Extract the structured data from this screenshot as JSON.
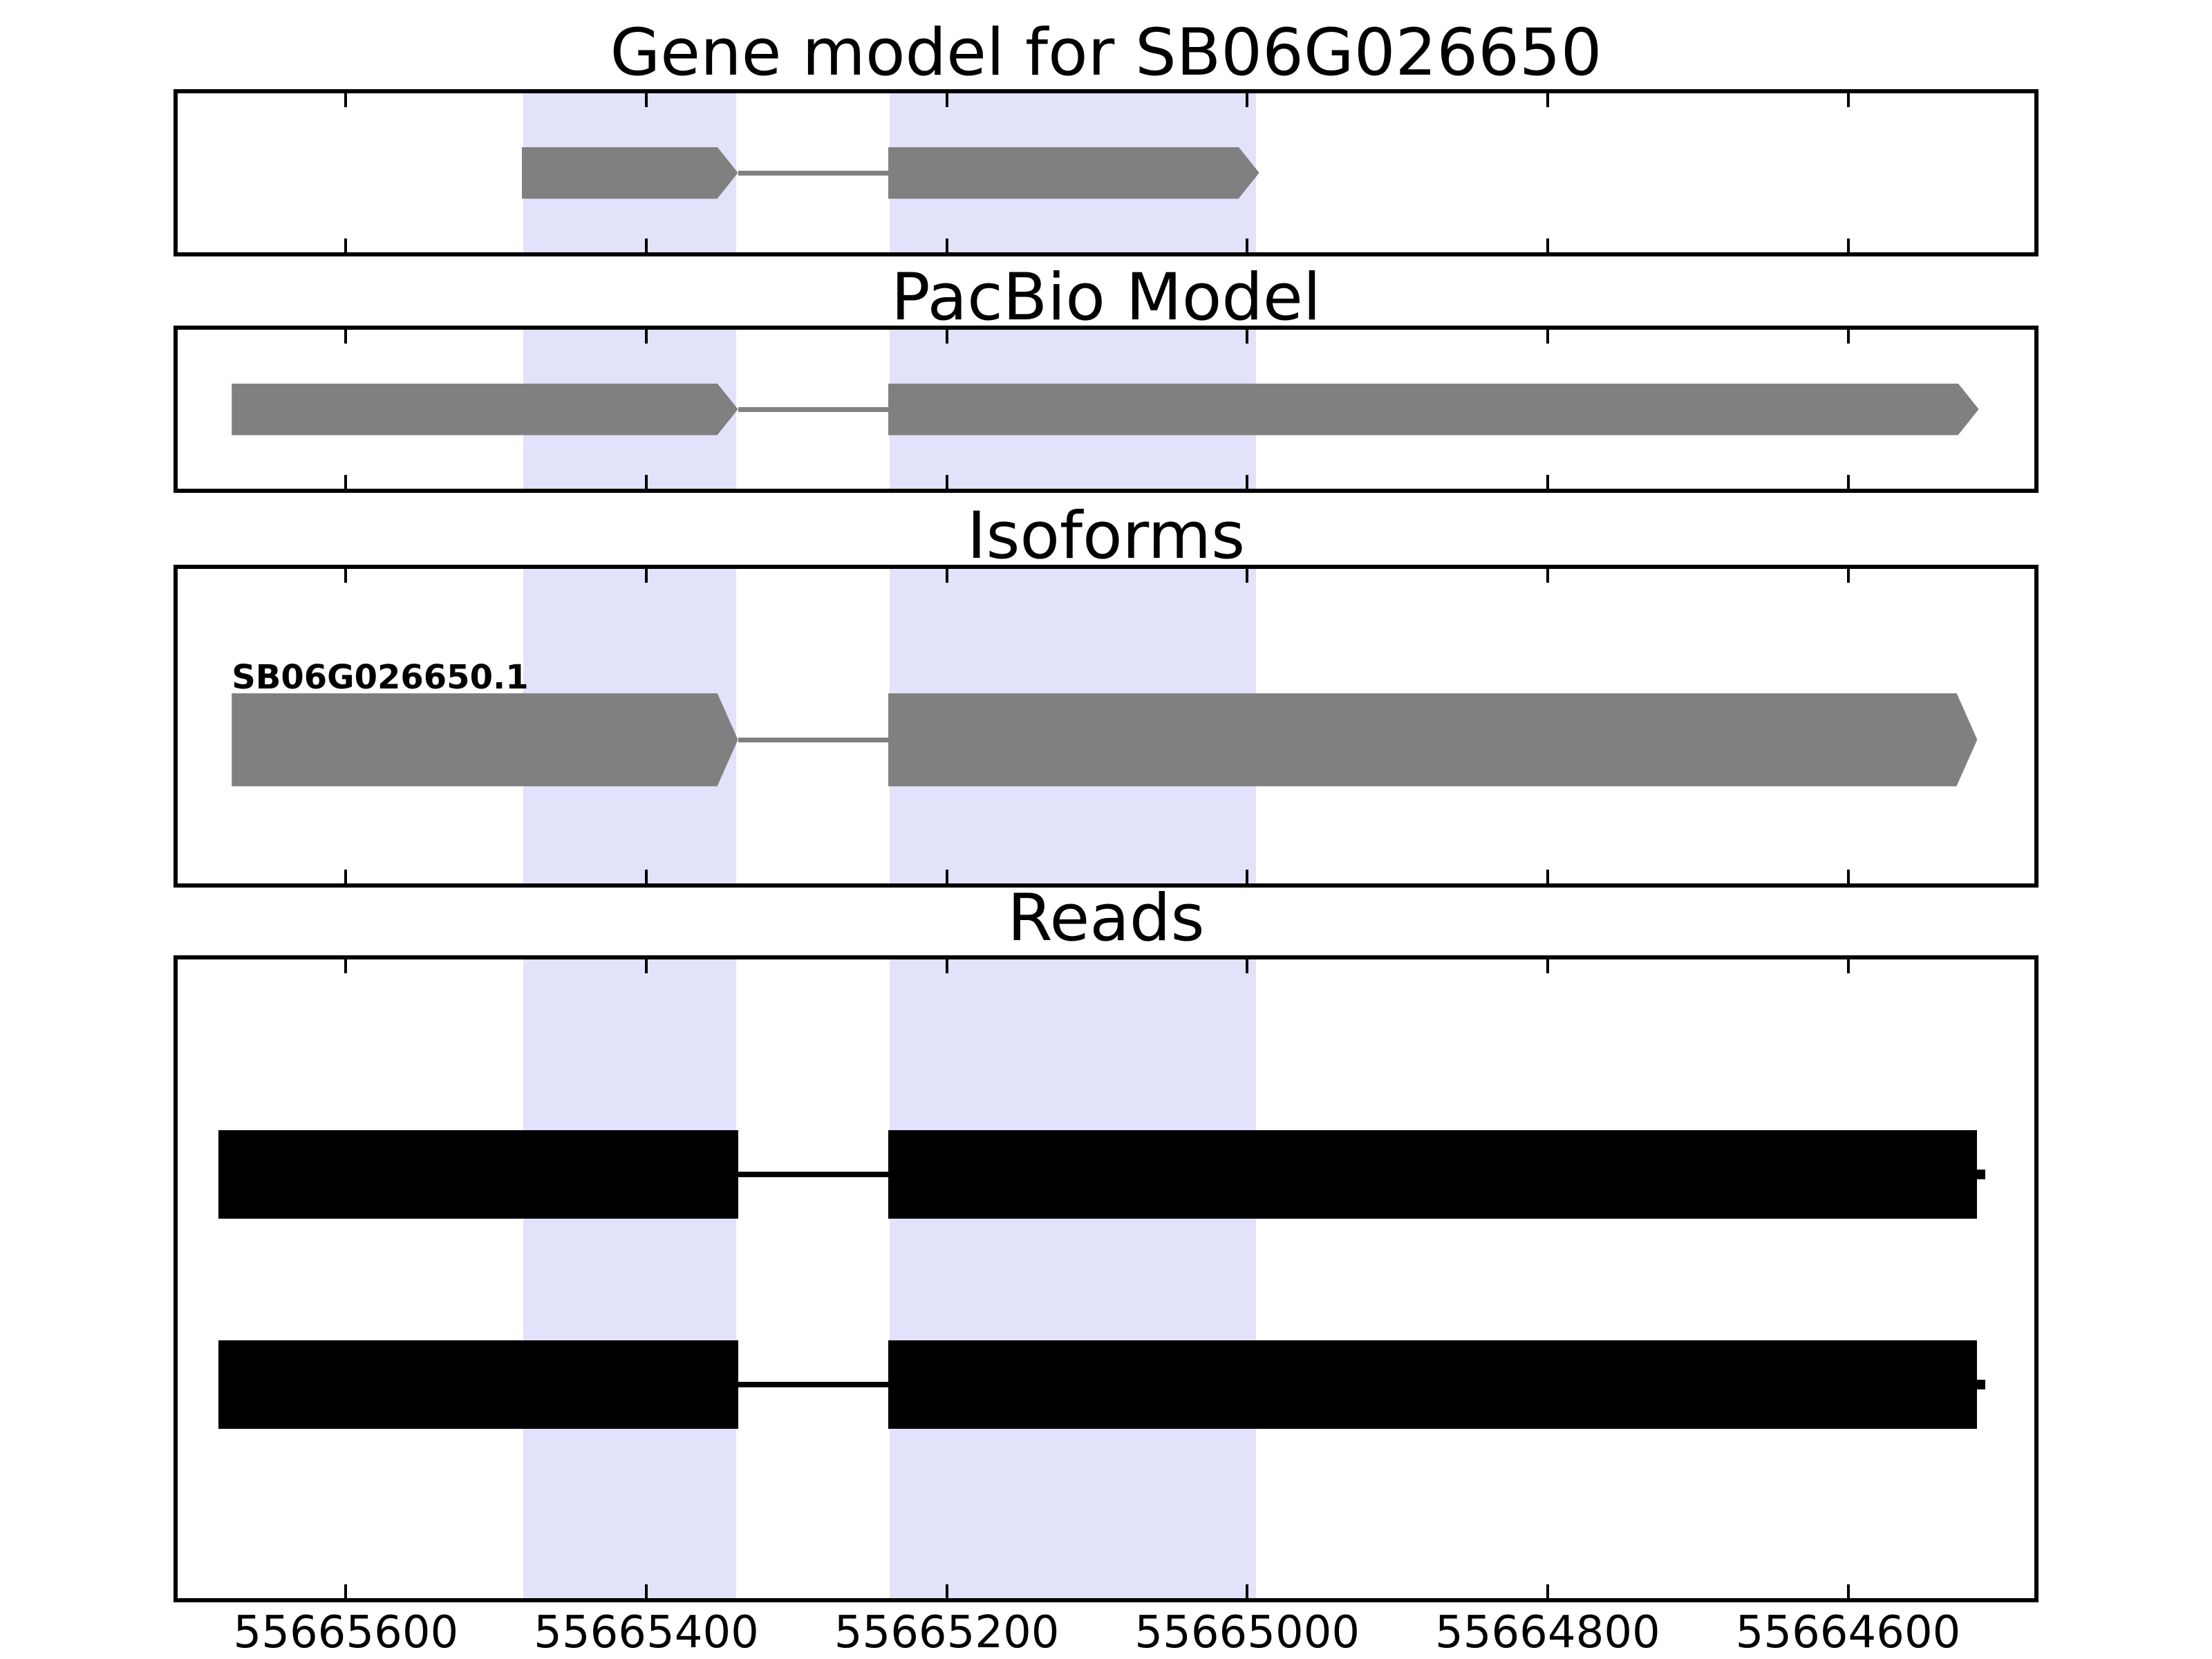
{
  "figure": {
    "panels": [
      {
        "title": "Gene model for SB06G026650"
      },
      {
        "title": "PacBio Model"
      },
      {
        "title": "Isoforms"
      },
      {
        "title": "Reads"
      }
    ]
  },
  "axis": {
    "tick_labels": [
      "55665600",
      "55665400",
      "55665200",
      "55665000",
      "55664800",
      "55664600"
    ]
  },
  "colors": {
    "exon_fill": "#808080",
    "intron_line": "#808080",
    "read_fill": "#000000",
    "highlight_fill": "#E2E2FA",
    "axis_color": "#000000",
    "text_color": "#000000"
  },
  "isoform_label": "SB06G026650.1",
  "chart_data": {
    "type": "genome_tracks",
    "gene_id": "SB06G026650",
    "coordinate_direction": "decreasing_left_to_right",
    "xlim": [
      55665712,
      55664476
    ],
    "x_ticks": [
      55665600,
      55665400,
      55665200,
      55665000,
      55664800,
      55664600
    ],
    "highlighted_regions": [
      {
        "start": 55665482,
        "end": 55665340
      },
      {
        "start": 55665238,
        "end": 55664994
      }
    ],
    "tracks": [
      {
        "name": "Gene model for SB06G026650",
        "row_type": "arrow_transcript",
        "strand_arrow": "right",
        "exons": [
          [
            55665483,
            55665339
          ],
          [
            55665239,
            55664992
          ]
        ]
      },
      {
        "name": "PacBio Model",
        "row_type": "arrow_transcript",
        "strand_arrow": "right",
        "exons": [
          [
            55665676,
            55665339
          ],
          [
            55665239,
            55664513
          ]
        ]
      },
      {
        "name": "Isoforms",
        "row_type": "arrow_transcript",
        "strand_arrow": "right",
        "label": "SB06G026650.1",
        "exons": [
          [
            55665676,
            55665339
          ],
          [
            55665239,
            55664514
          ]
        ]
      },
      {
        "name": "Reads",
        "row_type": "read",
        "reads": [
          {
            "blocks": [
              [
                55665685,
                55665339
              ],
              [
                55665239,
                55664514
              ]
            ]
          },
          {
            "blocks": [
              [
                55665685,
                55665339
              ],
              [
                55665239,
                55664514
              ]
            ]
          }
        ]
      }
    ]
  }
}
